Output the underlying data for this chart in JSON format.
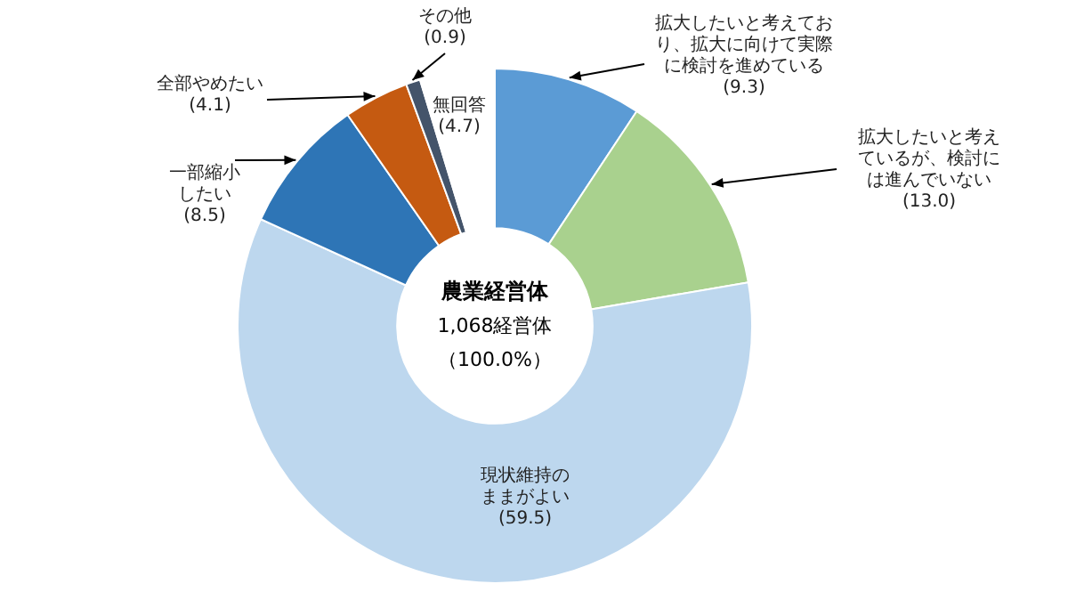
{
  "chart_data": {
    "type": "donut",
    "categories": [
      "拡大したいと考えており、拡大に向けて実際に検討を進めている",
      "拡大したいと考えているが、検討には進んでいない",
      "現状維持のままがよい",
      "一部縮小したい",
      "全部やめたい",
      "その他",
      "無回答"
    ],
    "values": [
      9.3,
      13.0,
      59.5,
      8.5,
      4.1,
      0.9,
      4.7
    ],
    "value_labels": [
      "(9.3)",
      "(13.0)",
      "(59.5)",
      "(8.5)",
      "(4.1)",
      "(0.9)",
      "(4.7)"
    ],
    "colors": [
      "#5b9bd5",
      "#a9d18e",
      "#bdd7ee",
      "#2e75b6",
      "#c55a11",
      "#44546a",
      "#ffffff"
    ],
    "annotations": [
      "農業経営体",
      "1,068経営体",
      "（100.0%）"
    ],
    "legend": false
  }
}
